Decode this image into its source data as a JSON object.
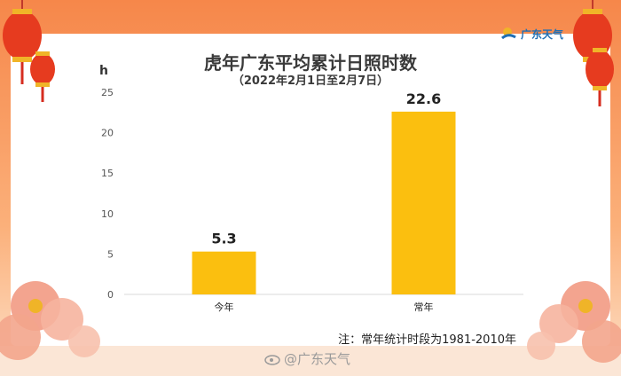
{
  "brand": {
    "name": "广东天气",
    "watermark": "@广东天气"
  },
  "note": "注：常年统计时段为1981-2010年",
  "colors": {
    "bar": "#fbbf0f",
    "frame": "#f6874a",
    "axis": "#555555",
    "grid": "#d9d9d9"
  },
  "chart_data": {
    "type": "bar",
    "title": "虎年广东平均累计日照时数",
    "subtitle": "（2022年2月1日至2月7日）",
    "ylabel": "h",
    "xlabel": "",
    "categories": [
      "今年",
      "常年"
    ],
    "values": [
      5.3,
      22.6
    ],
    "data_labels": [
      "5.3",
      "22.6"
    ],
    "ylim": [
      0,
      25
    ],
    "yticks": [
      0,
      5,
      10,
      15,
      20,
      25
    ],
    "grid": false,
    "legend": "none"
  }
}
